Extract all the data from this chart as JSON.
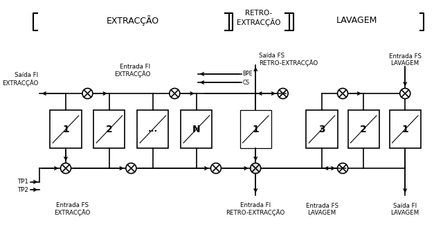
{
  "title_extrac": "EXTRACÇÃO",
  "title_retro": "RETRO-\nEXTRACÇÃO",
  "title_lava": "LAVAGEM",
  "bg_color": "#ffffff",
  "box_color": "#ffffff",
  "box_edge": "#000000",
  "line_color": "#000000",
  "text_color": "#000000",
  "font_size": 7,
  "label_font_size": 6.5,
  "header_font_size": 9
}
